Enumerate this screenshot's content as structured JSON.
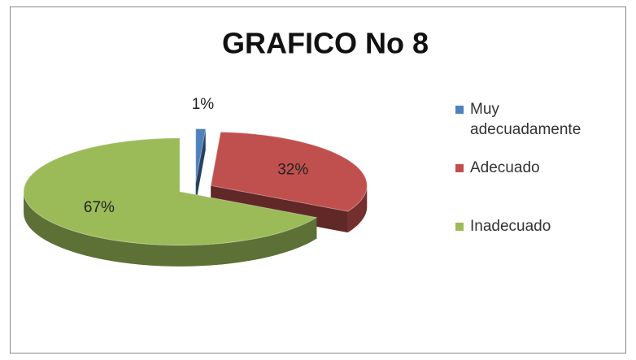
{
  "chart_data": {
    "type": "pie",
    "title": "GRAFICO No 8",
    "categories": [
      "Muy adecuadamente",
      "Adecuado",
      "Inadecuado"
    ],
    "values": [
      1,
      32,
      67
    ],
    "value_labels": [
      "1%",
      "32%",
      "67%"
    ],
    "colors": [
      "#4f81bd",
      "#c0504d",
      "#9bbb59"
    ],
    "legend": "right"
  }
}
